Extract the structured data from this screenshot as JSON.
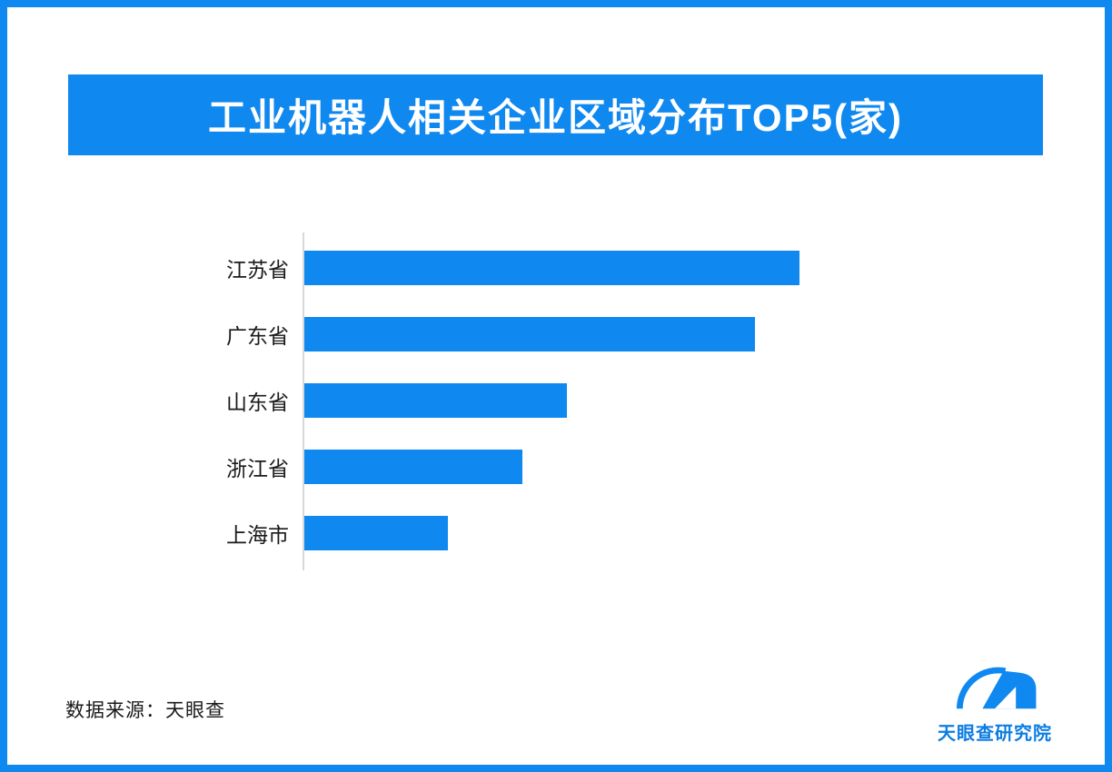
{
  "page": {
    "background": "#ffffff",
    "border_color": "#0f88f0"
  },
  "header": {
    "title": "工业机器人相关企业区域分布TOP5(家)",
    "banner_color": "#0f88f0",
    "text_color": "#ffffff"
  },
  "chart_data": {
    "type": "bar",
    "orientation": "horizontal",
    "title": "工业机器人相关企业区域分布TOP5(家)",
    "categories": [
      "江苏省",
      "广东省",
      "山东省",
      "浙江省",
      "上海市"
    ],
    "values": [
      100,
      91,
      53,
      44,
      29
    ],
    "value_axis": "unlabeled",
    "note": "No numeric value labels or gridlines shown; values are relative bar lengths scaled to max = 100.",
    "bar_color": "#0f88f0",
    "axis_line_color": "#d8d8d8",
    "legend": "none",
    "grid": false
  },
  "footer": {
    "source": "数据来源：天眼查",
    "logo_text": "天眼查研究院",
    "logo_color": "#0f88f0",
    "logo_text_color": "#0c7de2"
  }
}
